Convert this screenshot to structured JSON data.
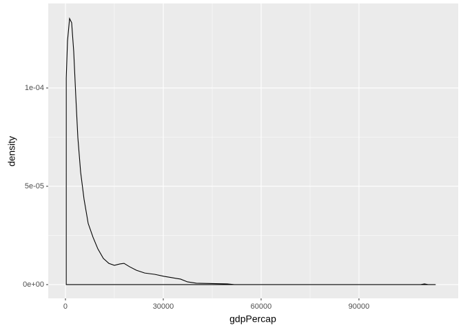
{
  "chart_data": {
    "type": "density",
    "x_label": "gdpPercap",
    "y_label": "density",
    "x": [
      241,
      241,
      634,
      1268,
      1902,
      2536,
      3170,
      3803,
      4649,
      5705,
      6973,
      8452,
      9931,
      11622,
      13312,
      15002,
      16693,
      17961,
      19651,
      21764,
      24300,
      27470,
      30216,
      32752,
      35288,
      37401,
      40148,
      49657,
      51770,
      108820,
      110088,
      111356,
      113523
    ],
    "values": [
      0,
      0.000105,
      0.000124,
      0.0001353,
      0.0001332,
      0.0001185,
      9.58e-05,
      7.48e-05,
      5.73e-05,
      4.34e-05,
      3.11e-05,
      2.41e-05,
      1.82e-05,
      1.33e-05,
      1.08e-05,
      9.8e-06,
      1.05e-05,
      1.08e-05,
      9.1e-06,
      7.3e-06,
      5.9e-06,
      5.2e-06,
      4.2e-06,
      3.5e-06,
      2.8e-06,
      1.4e-06,
      7e-07,
      3.5e-07,
      0,
      0,
      3.5e-07,
      0,
      0
    ],
    "color": "#000000",
    "xlim": [
      -5282,
      120430
    ],
    "xticks": [
      0,
      30000,
      60000,
      90000
    ],
    "ylim": [
      -7e-06,
      0.000143
    ],
    "yticks": [
      {
        "value": 0,
        "label": "0e+00"
      },
      {
        "value": 5e-05,
        "label": "5e-05"
      },
      {
        "value": 0.0001,
        "label": "1e-04"
      }
    ],
    "grid": true
  }
}
